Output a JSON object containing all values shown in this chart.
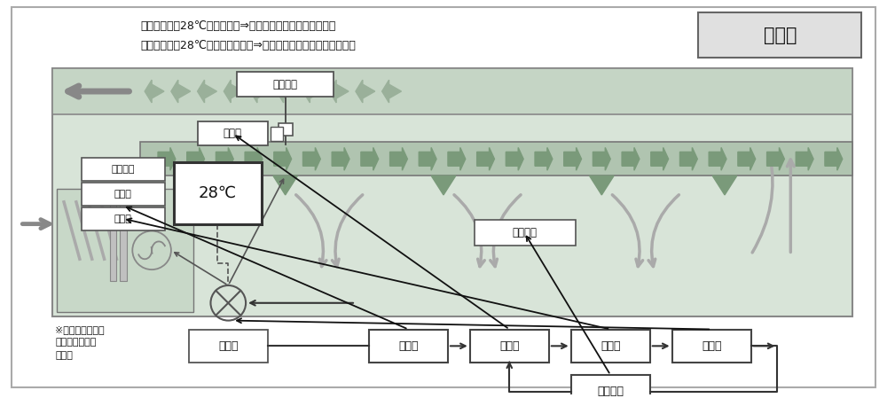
{
  "bg_color": "#ffffff",
  "outer_border": "#888888",
  "hvac_bg": "#d8e4d8",
  "hvac_border": "#888888",
  "duct_color": "#b8cab8",
  "inner_room_bg": "#dce8dc",
  "chevron_color": "#9ab09a",
  "text_color": "#111111",
  "box_edge": "#555555",
  "box_edge_dark": "#333333",
  "arrow_color": "#555555",
  "black": "#111111",
  "title_text": "冷房時",
  "header_line1": "室温を計る（28℃を超えた）⇒冷水を送る（流量を増やす）",
  "header_line2": "室温を計る（28℃より下がった）⇒冷水を止める（流量を減らす）",
  "box_shitsuon": "室温計測",
  "box_kenshutsu_top": "検出部",
  "box_ondo": "温度設定",
  "box_mokuhyo_label": "目標値",
  "box_chosetsu_label": "調節部",
  "box_28": "28℃",
  "box_seigyo_label": "制御対象",
  "box_sousa_label": "操作部",
  "box_mokuhyo_bot": "目標値",
  "box_kenshutsu_bot": "検出部",
  "box_chosetsu_bot": "調節部",
  "box_sousa_bot": "操作部",
  "box_seigyo_bot": "制御対象",
  "note_text": "※ファンは一定で\n動いているもの\nとする"
}
